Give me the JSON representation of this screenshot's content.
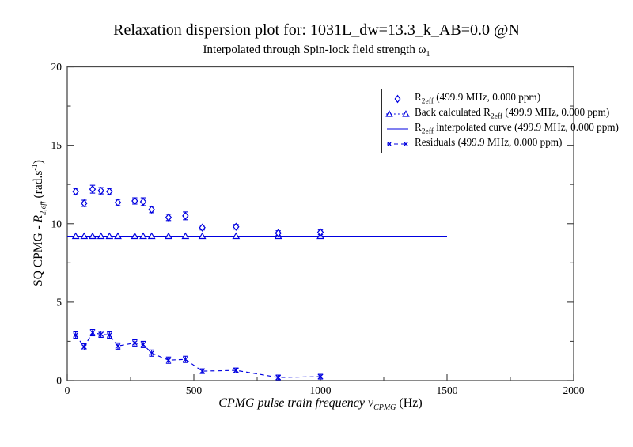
{
  "window": {
    "background": "#ffffff"
  },
  "title": "Relaxation dispersion plot for: 1031L_dw=13.3_k_AB=0.0 @N",
  "subtitle": {
    "text": "Interpolated through Spin-lock field strength ω",
    "sub": "1"
  },
  "y_axis_label": {
    "pre": "SQ CPMG - ",
    "symbol": "R",
    "symbol_sub": "2,eff",
    "unit_pre": " (rad.s",
    "unit_sup": "-1",
    "unit_post": ")"
  },
  "x_axis_label": {
    "pre": "CPMG pulse train frequency ν",
    "sub": "CPMG",
    "post": " (Hz)"
  },
  "legend": {
    "items": [
      {
        "marker": "diamond",
        "pre": "R",
        "sub": "2eff",
        "post": " (499.9 MHz, 0.000 ppm)"
      },
      {
        "marker": "triangle-dotted",
        "pre": "Back calculated R",
        "sub": "2eff",
        "post": " (499.9 MHz, 0.000 ppm)"
      },
      {
        "marker": "solid-line",
        "pre": "R",
        "sub": "2eff",
        "post": " interpolated curve (499.9 MHz, 0.000 ppm)"
      },
      {
        "marker": "x-dashed",
        "pre": "Residuals (499.9 MHz, 0.000 ppm)",
        "sub": "",
        "post": ""
      }
    ]
  },
  "chart_data": {
    "type": "scatter",
    "title": "Relaxation dispersion plot for: 1031L_dw=13.3_k_AB=0.0 @N",
    "subtitle": "Interpolated through Spin-lock field strength ω1",
    "xlabel": "CPMG pulse train frequency νCPMG (Hz)",
    "ylabel": "SQ CPMG - R2,eff (rad.s-1)",
    "xlim": [
      0,
      2000
    ],
    "ylim": [
      0,
      20
    ],
    "xticks": [
      0,
      500,
      1000,
      1500,
      2000
    ],
    "xticks_minor": [
      250,
      750,
      1250,
      1750
    ],
    "yticks": [
      0,
      5,
      10,
      15,
      20
    ],
    "yticks_minor": [
      2.5,
      7.5,
      12.5,
      17.5
    ],
    "grid": false,
    "legend_position": "top-right",
    "series_color": "#0000e0",
    "frame_color": "#4a4a4a",
    "series": [
      {
        "name": "R2eff (499.9 MHz, 0.000 ppm)",
        "style": "scatter",
        "marker": "diamond",
        "x": [
          33.3,
          66.7,
          100,
          133.3,
          166.7,
          200,
          266.7,
          300,
          333.3,
          400,
          466.7,
          533.3,
          666.7,
          833.3,
          1000
        ],
        "y": [
          12.05,
          11.3,
          12.2,
          12.1,
          12.05,
          11.35,
          11.45,
          11.4,
          10.9,
          10.4,
          10.5,
          9.75,
          9.8,
          9.4,
          9.45
        ],
        "yerr": [
          0.2,
          0.2,
          0.25,
          0.2,
          0.2,
          0.2,
          0.2,
          0.25,
          0.2,
          0.2,
          0.25,
          0.15,
          0.15,
          0.15,
          0.15
        ]
      },
      {
        "name": "Back calculated R2eff (499.9 MHz, 0.000 ppm)",
        "style": "dotted-line",
        "marker": "triangle",
        "x": [
          33.3,
          66.7,
          100,
          133.3,
          166.7,
          200,
          266.7,
          300,
          333.3,
          400,
          466.7,
          533.3,
          666.7,
          833.3,
          1000
        ],
        "y": [
          9.2,
          9.2,
          9.2,
          9.2,
          9.2,
          9.2,
          9.2,
          9.2,
          9.2,
          9.2,
          9.2,
          9.2,
          9.2,
          9.2,
          9.2
        ]
      },
      {
        "name": "R2eff interpolated curve (499.9 MHz, 0.000 ppm)",
        "style": "solid-line",
        "marker": "none",
        "x": [
          0,
          1500
        ],
        "y": [
          9.2,
          9.2
        ]
      },
      {
        "name": "Residuals (499.9 MHz, 0.000 ppm)",
        "style": "dashed-line",
        "marker": "x",
        "x": [
          33.3,
          66.7,
          100,
          133.3,
          166.7,
          200,
          266.7,
          300,
          333.3,
          400,
          466.7,
          533.3,
          666.7,
          833.3,
          1000
        ],
        "y": [
          2.9,
          2.15,
          3.05,
          2.95,
          2.9,
          2.2,
          2.4,
          2.3,
          1.75,
          1.3,
          1.35,
          0.6,
          0.65,
          0.2,
          0.25
        ],
        "yerr": [
          0.2,
          0.2,
          0.2,
          0.2,
          0.2,
          0.2,
          0.2,
          0.2,
          0.2,
          0.2,
          0.2,
          0.15,
          0.15,
          0.15,
          0.15
        ]
      }
    ]
  }
}
